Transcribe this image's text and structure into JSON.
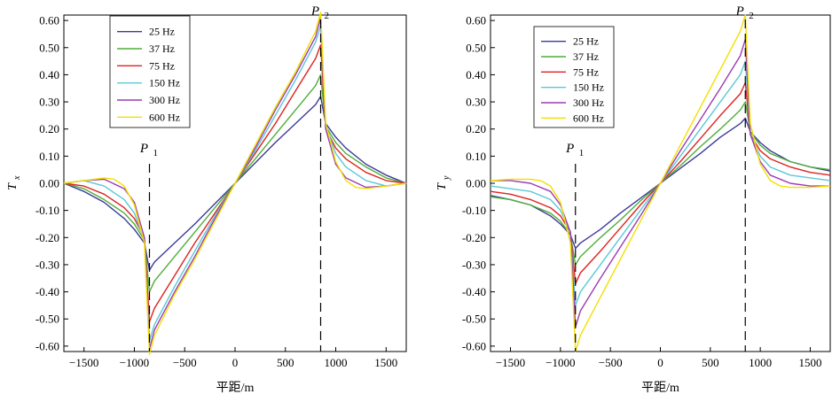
{
  "chart_data": [
    {
      "type": "line",
      "ylabel": "T",
      "ylabel_sub": "x",
      "xlabel": "平距/m",
      "xlim": [
        -1700,
        1700
      ],
      "ylim": [
        -0.62,
        0.62
      ],
      "x_ticks": [
        -1500,
        -1000,
        -500,
        0,
        500,
        1000,
        1500
      ],
      "x_tick_labels": [
        "−1500",
        "−1000",
        "−500",
        "0",
        "500",
        "1000",
        "1500"
      ],
      "y_ticks": [
        -0.6,
        -0.5,
        -0.4,
        -0.3,
        -0.2,
        -0.1,
        0.0,
        0.1,
        0.2,
        0.3,
        0.4,
        0.5,
        0.6
      ],
      "y_tick_labels": [
        "-0.60",
        "-0.50",
        "-0.40",
        "-0.30",
        "-0.20",
        "-0.10",
        "0.00",
        "0.10",
        "0.20",
        "0.30",
        "0.40",
        "0.50",
        "0.60"
      ],
      "legend_position": "top-left",
      "annotations": [
        {
          "label": "P",
          "sub": "1",
          "x": -850
        },
        {
          "label": "P",
          "sub": "2",
          "x": 850
        }
      ],
      "series": [
        {
          "name": "25 Hz",
          "color": "#3a3a9c",
          "x": [
            -1700,
            -1500,
            -1300,
            -1100,
            -1000,
            -900,
            -850,
            -800,
            -600,
            -400,
            -200,
            0,
            200,
            400,
            600,
            800,
            850,
            900,
            1000,
            1100,
            1300,
            1500,
            1700
          ],
          "y": [
            0.0,
            -0.03,
            -0.07,
            -0.13,
            -0.17,
            -0.22,
            -0.32,
            -0.29,
            -0.22,
            -0.15,
            -0.075,
            0.0,
            0.075,
            0.15,
            0.22,
            0.29,
            0.32,
            0.22,
            0.17,
            0.13,
            0.07,
            0.03,
            0.0
          ]
        },
        {
          "name": "37 Hz",
          "color": "#4caf38",
          "x": [
            -1700,
            -1500,
            -1300,
            -1100,
            -1000,
            -900,
            -850,
            -800,
            -600,
            -400,
            -200,
            0,
            200,
            400,
            600,
            800,
            850,
            900,
            1000,
            1100,
            1300,
            1500,
            1700
          ],
          "y": [
            0.0,
            -0.02,
            -0.06,
            -0.11,
            -0.15,
            -0.21,
            -0.4,
            -0.36,
            -0.27,
            -0.18,
            -0.09,
            0.0,
            0.09,
            0.18,
            0.27,
            0.36,
            0.4,
            0.21,
            0.15,
            0.11,
            0.06,
            0.02,
            0.0
          ]
        },
        {
          "name": "75 Hz",
          "color": "#e02020",
          "x": [
            -1700,
            -1500,
            -1300,
            -1100,
            -1000,
            -900,
            -850,
            -800,
            -600,
            -400,
            -200,
            0,
            200,
            400,
            600,
            800,
            850,
            900,
            1000,
            1100,
            1300,
            1500,
            1700
          ],
          "y": [
            0.0,
            -0.01,
            -0.04,
            -0.09,
            -0.13,
            -0.2,
            -0.51,
            -0.46,
            -0.34,
            -0.22,
            -0.11,
            0.0,
            0.11,
            0.22,
            0.34,
            0.46,
            0.51,
            0.2,
            0.13,
            0.09,
            0.04,
            0.01,
            0.0
          ]
        },
        {
          "name": "150 Hz",
          "color": "#5cc8d8",
          "x": [
            -1700,
            -1500,
            -1300,
            -1100,
            -1000,
            -900,
            -850,
            -800,
            -600,
            -400,
            -200,
            0,
            200,
            400,
            600,
            800,
            850,
            900,
            1000,
            1100,
            1300,
            1500,
            1700
          ],
          "y": [
            0.0,
            0.01,
            -0.01,
            -0.06,
            -0.11,
            -0.21,
            -0.58,
            -0.52,
            -0.38,
            -0.25,
            -0.12,
            0.0,
            0.12,
            0.25,
            0.38,
            0.52,
            0.58,
            0.21,
            0.11,
            0.06,
            0.01,
            -0.01,
            0.0
          ]
        },
        {
          "name": "300 Hz",
          "color": "#9c3cb4",
          "x": [
            -1700,
            -1500,
            -1300,
            -1100,
            -1000,
            -900,
            -850,
            -800,
            -600,
            -400,
            -200,
            0,
            200,
            400,
            600,
            800,
            850,
            900,
            1000,
            1100,
            1300,
            1500,
            1700
          ],
          "y": [
            0.0,
            0.01,
            0.015,
            -0.02,
            -0.07,
            -0.2,
            -0.61,
            -0.54,
            -0.4,
            -0.27,
            -0.13,
            0.0,
            0.13,
            0.27,
            0.4,
            0.54,
            0.61,
            0.2,
            0.07,
            0.02,
            -0.015,
            -0.01,
            0.0
          ]
        },
        {
          "name": "600 Hz",
          "color": "#f2e000",
          "x": [
            -1700,
            -1500,
            -1300,
            -1200,
            -1100,
            -1000,
            -900,
            -850,
            -800,
            -600,
            -400,
            -200,
            0,
            200,
            400,
            600,
            800,
            850,
            900,
            1000,
            1100,
            1200,
            1300,
            1500,
            1700
          ],
          "y": [
            0.0,
            0.01,
            0.02,
            0.015,
            -0.01,
            -0.08,
            -0.22,
            -0.63,
            -0.56,
            -0.41,
            -0.28,
            -0.14,
            0.0,
            0.14,
            0.28,
            0.41,
            0.56,
            0.63,
            0.22,
            0.08,
            0.01,
            -0.015,
            -0.02,
            -0.01,
            0.0
          ]
        }
      ]
    },
    {
      "type": "line",
      "ylabel": "T",
      "ylabel_sub": "y",
      "xlabel": "平距/m",
      "xlim": [
        -1700,
        1700
      ],
      "ylim": [
        -0.62,
        0.62
      ],
      "x_ticks": [
        -1500,
        -1000,
        -500,
        0,
        500,
        1000,
        1500
      ],
      "x_tick_labels": [
        "−1500",
        "−1000",
        "−500",
        "0",
        "500",
        "1000",
        "1500"
      ],
      "y_ticks": [
        -0.6,
        -0.5,
        -0.4,
        -0.3,
        -0.2,
        -0.1,
        0.0,
        0.1,
        0.2,
        0.3,
        0.4,
        0.5,
        0.6
      ],
      "y_tick_labels": [
        "-0.60",
        "-0.50",
        "-0.40",
        "-0.30",
        "-0.20",
        "-0.10",
        "0.00",
        "0.10",
        "0.20",
        "0.30",
        "0.40",
        "0.50",
        "0.60"
      ],
      "legend_position": "top-left",
      "annotations": [
        {
          "label": "P",
          "sub": "1",
          "x": -850
        },
        {
          "label": "P",
          "sub": "2",
          "x": 850
        }
      ],
      "series": [
        {
          "name": "25 Hz",
          "color": "#3a3a9c",
          "x": [
            -1700,
            -1500,
            -1300,
            -1100,
            -1000,
            -900,
            -850,
            -800,
            -600,
            -400,
            -200,
            0,
            200,
            400,
            600,
            800,
            850,
            900,
            1000,
            1100,
            1300,
            1500,
            1700
          ],
          "y": [
            -0.045,
            -0.06,
            -0.08,
            -0.12,
            -0.15,
            -0.19,
            -0.24,
            -0.22,
            -0.17,
            -0.11,
            -0.055,
            0.0,
            0.055,
            0.11,
            0.17,
            0.22,
            0.24,
            0.19,
            0.15,
            0.12,
            0.08,
            0.06,
            0.045
          ]
        },
        {
          "name": "37 Hz",
          "color": "#4caf38",
          "x": [
            -1700,
            -1500,
            -1300,
            -1100,
            -1000,
            -900,
            -850,
            -800,
            -600,
            -400,
            -200,
            0,
            200,
            400,
            600,
            800,
            850,
            900,
            1000,
            1100,
            1300,
            1500,
            1700
          ],
          "y": [
            -0.05,
            -0.06,
            -0.08,
            -0.11,
            -0.14,
            -0.19,
            -0.3,
            -0.27,
            -0.2,
            -0.135,
            -0.065,
            0.0,
            0.065,
            0.135,
            0.2,
            0.27,
            0.3,
            0.19,
            0.14,
            0.11,
            0.08,
            0.06,
            0.05
          ]
        },
        {
          "name": "75 Hz",
          "color": "#e02020",
          "x": [
            -1700,
            -1500,
            -1300,
            -1100,
            -1000,
            -900,
            -850,
            -800,
            -600,
            -400,
            -200,
            0,
            200,
            400,
            600,
            800,
            850,
            900,
            1000,
            1100,
            1300,
            1500,
            1700
          ],
          "y": [
            -0.03,
            -0.04,
            -0.06,
            -0.09,
            -0.12,
            -0.18,
            -0.37,
            -0.33,
            -0.25,
            -0.165,
            -0.08,
            0.0,
            0.08,
            0.165,
            0.25,
            0.33,
            0.37,
            0.18,
            0.12,
            0.09,
            0.06,
            0.04,
            0.03
          ]
        },
        {
          "name": "150 Hz",
          "color": "#5cc8d8",
          "x": [
            -1700,
            -1500,
            -1300,
            -1100,
            -1000,
            -900,
            -850,
            -800,
            -600,
            -400,
            -200,
            0,
            200,
            400,
            600,
            800,
            850,
            900,
            1000,
            1100,
            1300,
            1500,
            1700
          ],
          "y": [
            -0.01,
            -0.02,
            -0.03,
            -0.06,
            -0.1,
            -0.18,
            -0.45,
            -0.4,
            -0.3,
            -0.2,
            -0.1,
            0.0,
            0.1,
            0.2,
            0.3,
            0.4,
            0.45,
            0.18,
            0.1,
            0.06,
            0.03,
            0.02,
            0.01
          ]
        },
        {
          "name": "300 Hz",
          "color": "#9c3cb4",
          "x": [
            -1700,
            -1500,
            -1300,
            -1100,
            -1000,
            -900,
            -850,
            -800,
            -600,
            -400,
            -200,
            0,
            200,
            400,
            600,
            800,
            850,
            900,
            1000,
            1100,
            1300,
            1500,
            1700
          ],
          "y": [
            0.01,
            0.01,
            0.0,
            -0.03,
            -0.08,
            -0.18,
            -0.53,
            -0.47,
            -0.35,
            -0.235,
            -0.12,
            0.0,
            0.12,
            0.235,
            0.35,
            0.47,
            0.53,
            0.18,
            0.08,
            0.03,
            0.0,
            -0.01,
            -0.01
          ]
        },
        {
          "name": "600 Hz",
          "color": "#f2e000",
          "x": [
            -1700,
            -1500,
            -1300,
            -1200,
            -1100,
            -1000,
            -900,
            -850,
            -800,
            -600,
            -400,
            -200,
            0,
            200,
            400,
            600,
            800,
            850,
            900,
            1000,
            1100,
            1200,
            1300,
            1500,
            1700
          ],
          "y": [
            0.01,
            0.015,
            0.015,
            0.01,
            -0.01,
            -0.07,
            -0.22,
            -0.62,
            -0.56,
            -0.42,
            -0.28,
            -0.14,
            0.0,
            0.14,
            0.28,
            0.42,
            0.56,
            0.62,
            0.22,
            0.07,
            0.01,
            -0.01,
            -0.015,
            -0.015,
            -0.01
          ]
        }
      ]
    }
  ]
}
